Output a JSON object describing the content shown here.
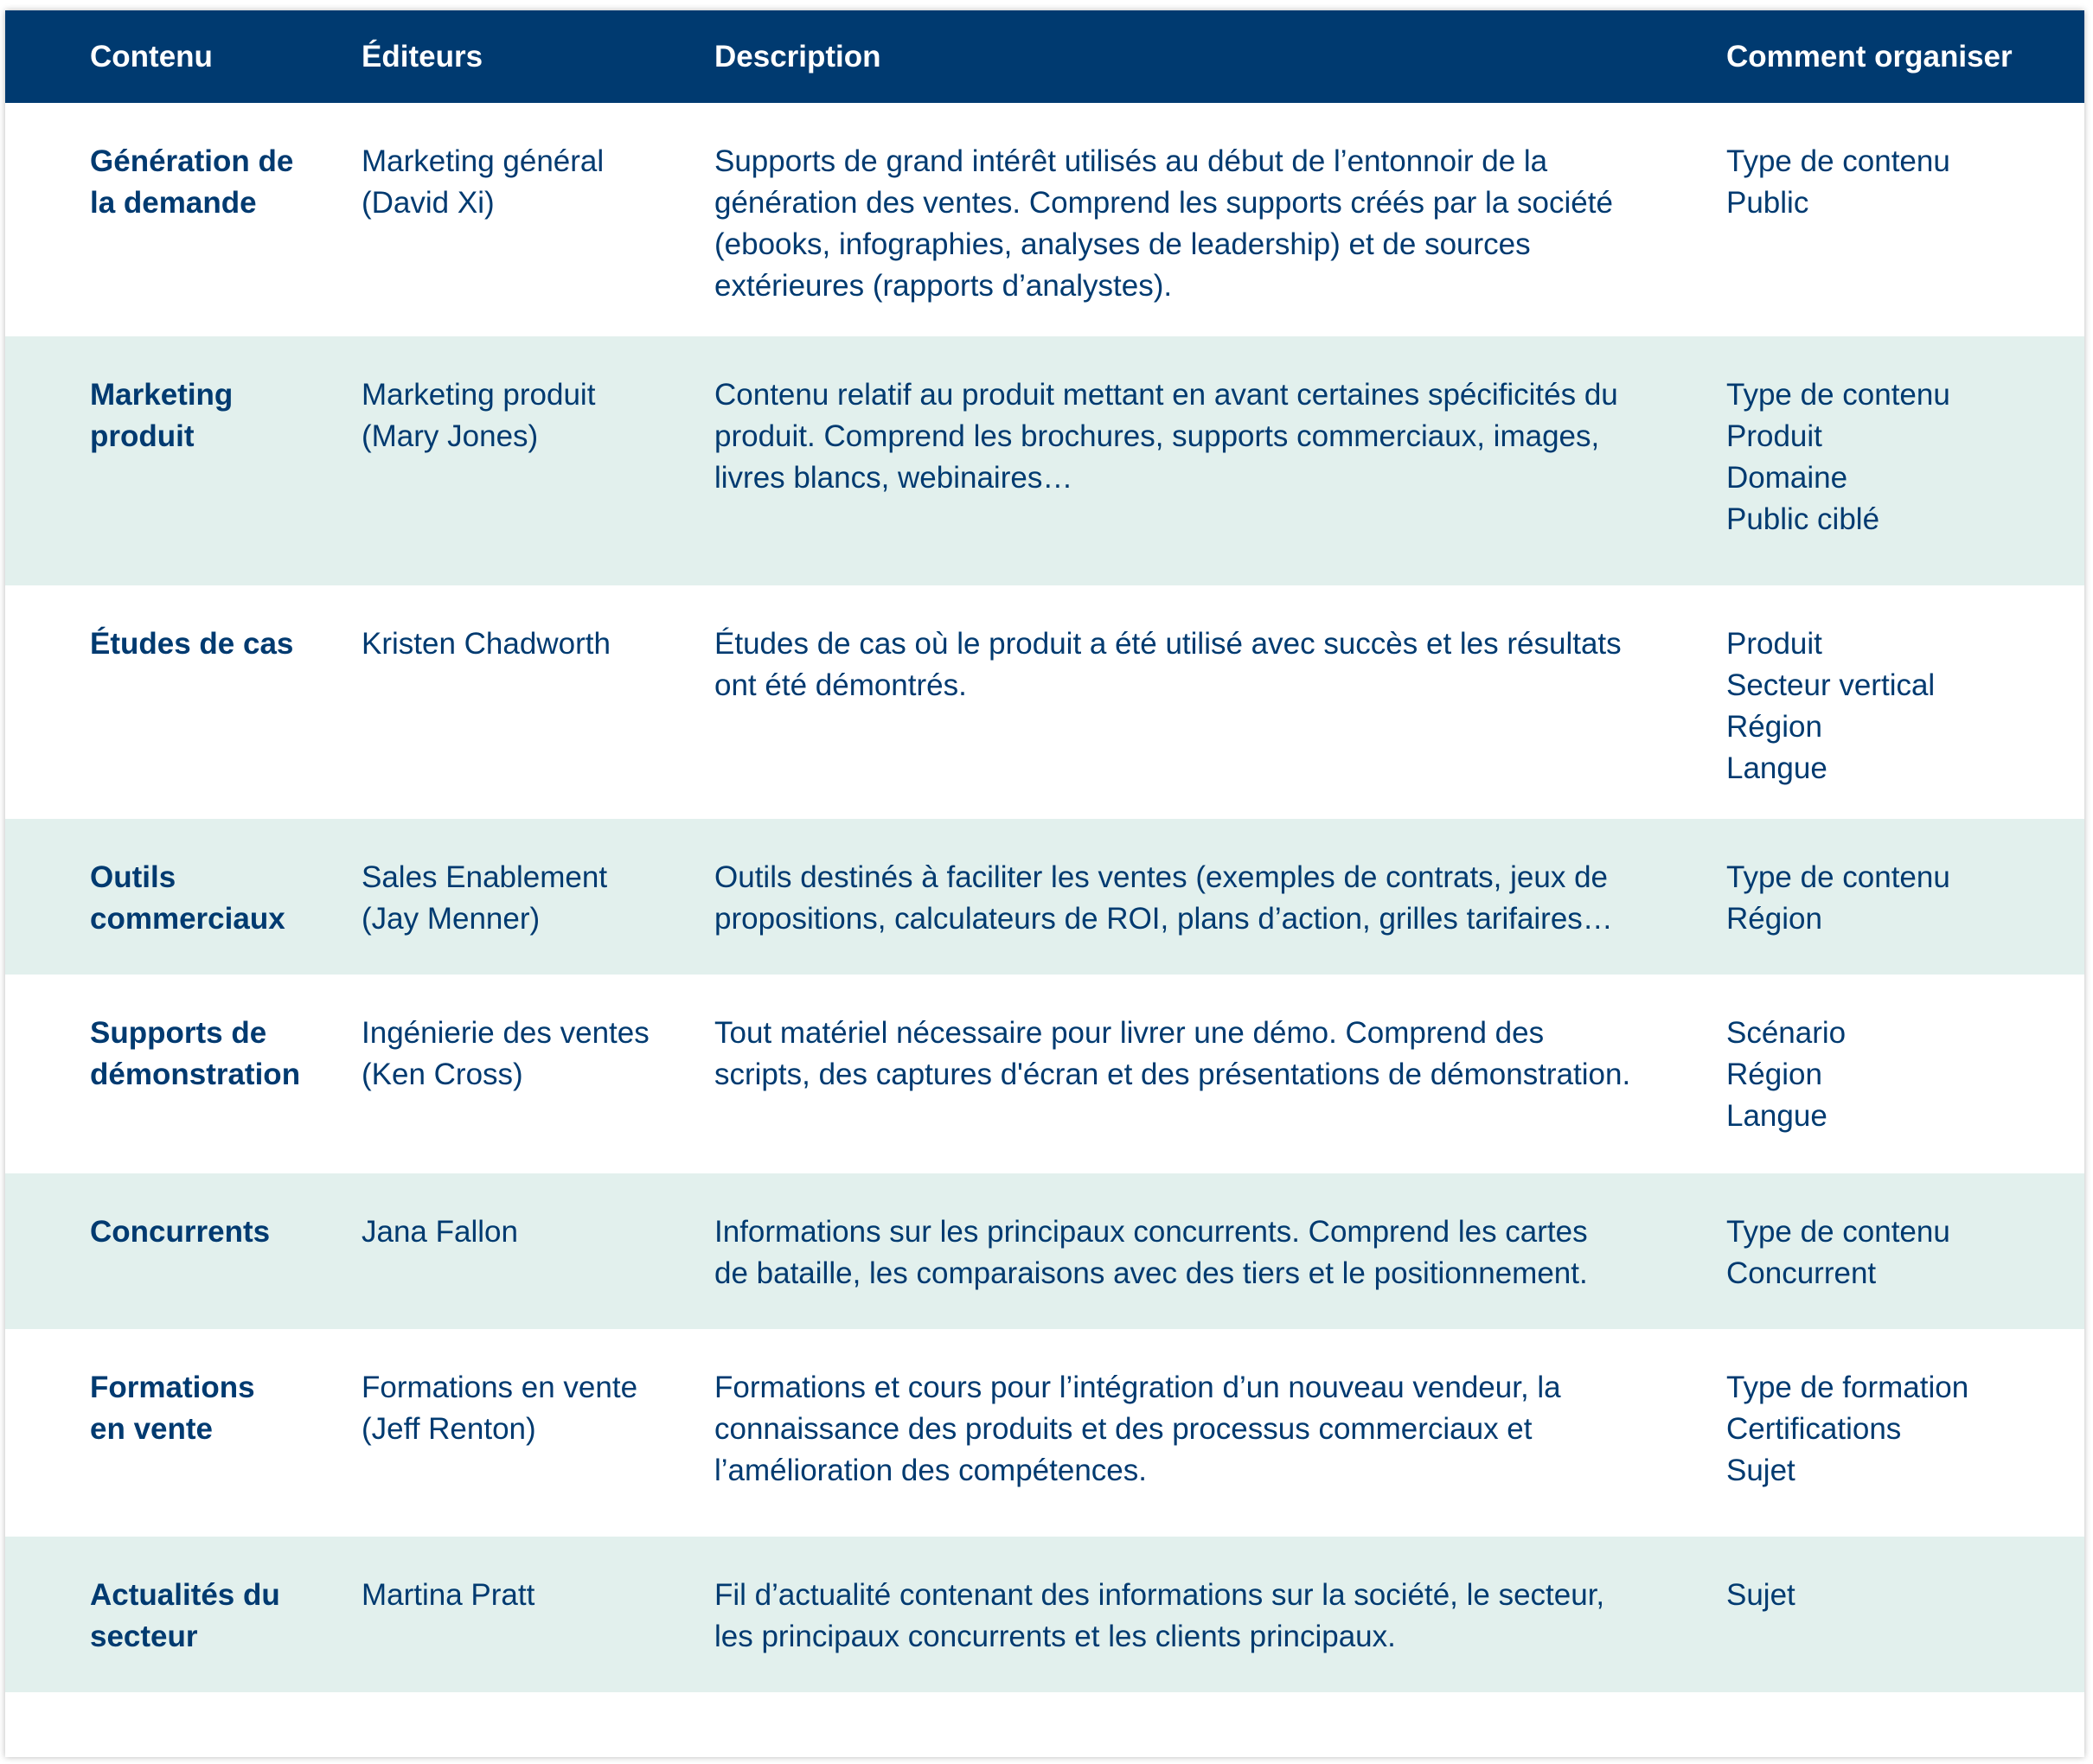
{
  "headers": [
    "Contenu",
    "Éditeurs",
    "Description",
    "Comment organiser"
  ],
  "rows": [
    {
      "content": [
        "Génération de",
        "la demande"
      ],
      "editors": [
        "Marketing général",
        "(David Xi)"
      ],
      "description": [
        "Supports de grand intérêt utilisés au début de l’entonnoir de la",
        "génération des ventes. Comprend les supports créés par la société",
        "(ebooks, infographies, analyses de leadership) et de sources",
        "extérieures (rapports d’analystes)."
      ],
      "organize": [
        "Type de contenu",
        "Public"
      ]
    },
    {
      "content": [
        "Marketing",
        "produit"
      ],
      "editors": [
        "Marketing produit",
        "(Mary Jones)"
      ],
      "description": [
        "Contenu relatif au produit mettant en avant certaines spécificités du",
        "produit. Comprend les brochures, supports commerciaux, images,",
        "livres blancs, webinaires…"
      ],
      "organize": [
        "Type de contenu",
        "Produit",
        "Domaine",
        "Public ciblé"
      ]
    },
    {
      "content": [
        "Études de cas"
      ],
      "editors": [
        "Kristen Chadworth"
      ],
      "description": [
        "Études de cas où le produit a été utilisé avec succès et les résultats",
        "ont été démontrés."
      ],
      "organize": [
        "Produit",
        "Secteur vertical",
        "Région",
        "Langue"
      ]
    },
    {
      "content": [
        "Outils",
        "commerciaux"
      ],
      "editors": [
        "Sales Enablement",
        "(Jay Menner)"
      ],
      "description": [
        "Outils destinés à faciliter les ventes (exemples de contrats, jeux de",
        "propositions, calculateurs de ROI, plans d’action, grilles tarifaires…"
      ],
      "organize": [
        "Type de contenu",
        "Région"
      ]
    },
    {
      "content": [
        "Supports de",
        "démonstration"
      ],
      "editors": [
        "Ingénierie des ventes",
        "(Ken Cross)"
      ],
      "description": [
        "Tout matériel nécessaire pour livrer une démo. Comprend des",
        "scripts, des captures d'écran et des présentations de démonstration."
      ],
      "organize": [
        "Scénario",
        "Région",
        "Langue"
      ]
    },
    {
      "content": [
        "Concurrents"
      ],
      "editors": [
        "Jana Fallon"
      ],
      "description": [
        "Informations sur les principaux concurrents. Comprend les cartes",
        "de bataille, les comparaisons avec des tiers et le positionnement."
      ],
      "organize": [
        "Type de contenu",
        "Concurrent"
      ]
    },
    {
      "content": [
        "Formations",
        "en vente"
      ],
      "editors": [
        "Formations en vente",
        "(Jeff Renton)"
      ],
      "description": [
        "Formations et cours pour l’intégration d’un nouveau vendeur, la",
        "connaissance des produits et des processus commerciaux et",
        "l’amélioration des compétences."
      ],
      "organize": [
        "Type de formation",
        "Certifications",
        "Sujet"
      ]
    },
    {
      "content": [
        "Actualités du",
        "secteur"
      ],
      "editors": [
        "Martina Pratt"
      ],
      "description": [
        "Fil d’actualité contenant des informations sur la société, le secteur,",
        "les principaux concurrents et les clients principaux."
      ],
      "organize": [
        "Sujet"
      ]
    }
  ],
  "colors": {
    "header_bg": "#003a70",
    "header_text": "#ffffff",
    "body_text": "#003a70",
    "stripe_bg": "#e2f0ed",
    "plain_bg": "#ffffff"
  }
}
